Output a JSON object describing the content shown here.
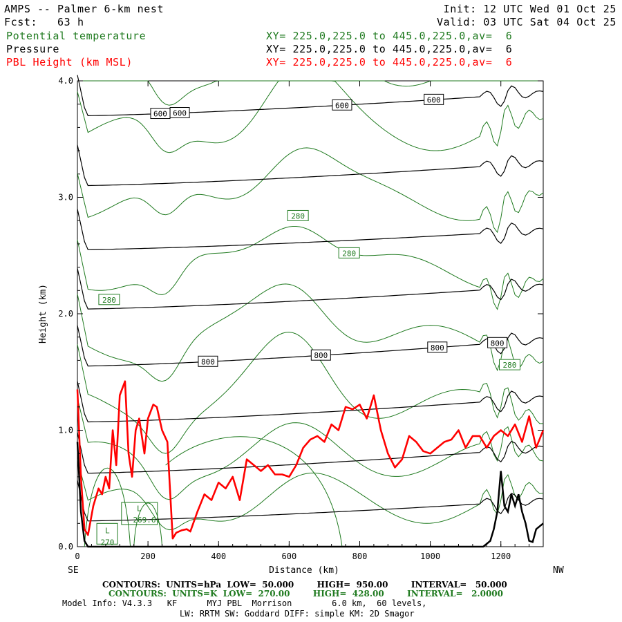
{
  "header": {
    "title": "AMPS -- Palmer 6-km nest",
    "fcst": "Fcst:   63 h",
    "init": "Init: 12 UTC Wed 01 Oct 25",
    "valid": "Valid: 03 UTC Sat 04 Oct 25",
    "fields": [
      {
        "name": "Potential temperature",
        "xy": "XY= 225.0,225.0 to 445.0,225.0,av=  6",
        "color": "#1f7a1f"
      },
      {
        "name": "Pressure",
        "xy": "XY= 225.0,225.0 to 445.0,225.0,av=  6",
        "color": "#000000"
      },
      {
        "name": "PBL Height (km MSL)",
        "xy": "XY= 225.0,225.0 to 445.0,225.0,av=  6",
        "color": "#ff0000"
      }
    ]
  },
  "chart_data": {
    "type": "line",
    "xlabel": "Distance (km)",
    "ylabel": "Height (km)",
    "xlim": [
      0,
      1320
    ],
    "ylim": [
      0,
      4.0
    ],
    "x_ticks": [
      0,
      200,
      400,
      600,
      800,
      1000,
      1200
    ],
    "y_ticks": [
      "0.0",
      "1.0",
      "2.0",
      "3.0",
      "4.0"
    ],
    "x_end_labels": {
      "left": "SE",
      "right": "NW"
    },
    "pressure_contours": {
      "units": "hPa",
      "low": 50,
      "high": 950,
      "interval": 50,
      "color": "#000000",
      "lines": [
        {
          "y0": 0.22,
          "y1": 0.4,
          "label": "",
          "label_x": []
        },
        {
          "y0": 0.63,
          "y1": 0.85,
          "label": "",
          "label_x": []
        },
        {
          "y0": 1.07,
          "y1": 1.28,
          "label": "",
          "label_x": []
        },
        {
          "y0": 1.55,
          "y1": 1.78,
          "label": "800",
          "label_x": [
            370,
            690,
            1020,
            1190
          ]
        },
        {
          "y0": 2.04,
          "y1": 2.24,
          "label": "",
          "label_x": []
        },
        {
          "y0": 2.55,
          "y1": 2.72,
          "label": "",
          "label_x": []
        },
        {
          "y0": 3.1,
          "y1": 3.3,
          "label": "",
          "label_x": []
        },
        {
          "y0": 3.7,
          "y1": 3.9,
          "label": "600",
          "label_x": [
            235,
            290,
            750,
            1010
          ]
        }
      ]
    },
    "theta_contours": {
      "units": "K",
      "low": 270,
      "high": 428,
      "interval": 2.0,
      "color": "#1f7a1f",
      "labels": [
        {
          "text": "280",
          "x": 90,
          "y": 2.12
        },
        {
          "text": "280",
          "x": 625,
          "y": 2.84
        },
        {
          "text": "280",
          "x": 770,
          "y": 2.52
        },
        {
          "text": "280",
          "x": 1225,
          "y": 1.56
        },
        {
          "text": "L",
          "x": 175,
          "y": 0.33
        },
        {
          "text": "269.6",
          "x": 190,
          "y": 0.23
        },
        {
          "text": "L",
          "x": 85,
          "y": 0.14
        },
        {
          "text": "270",
          "x": 85,
          "y": 0.04
        }
      ]
    },
    "pbl_height": {
      "name": "PBL Height (km MSL)",
      "color": "#ff0000",
      "x": [
        0,
        10,
        20,
        30,
        45,
        60,
        70,
        80,
        90,
        100,
        110,
        120,
        135,
        145,
        155,
        165,
        175,
        190,
        200,
        215,
        225,
        240,
        255,
        270,
        280,
        295,
        310,
        320,
        340,
        360,
        380,
        400,
        420,
        440,
        460,
        480,
        500,
        520,
        540,
        560,
        580,
        600,
        620,
        640,
        660,
        680,
        700,
        720,
        740,
        760,
        780,
        800,
        820,
        840,
        860,
        880,
        900,
        920,
        940,
        960,
        980,
        1000,
        1020,
        1040,
        1060,
        1080,
        1100,
        1120,
        1140,
        1160,
        1180,
        1200,
        1220,
        1240,
        1260,
        1280,
        1300,
        1320
      ],
      "y": [
        1.35,
        0.6,
        0.15,
        0.1,
        0.35,
        0.5,
        0.45,
        0.6,
        0.5,
        1.0,
        0.7,
        1.3,
        1.42,
        0.8,
        0.6,
        1.0,
        1.1,
        0.8,
        1.1,
        1.22,
        1.2,
        1.0,
        0.9,
        0.07,
        0.12,
        0.14,
        0.15,
        0.13,
        0.3,
        0.45,
        0.4,
        0.55,
        0.5,
        0.6,
        0.4,
        0.75,
        0.7,
        0.65,
        0.7,
        0.62,
        0.62,
        0.6,
        0.7,
        0.85,
        0.92,
        0.95,
        0.9,
        1.05,
        1.0,
        1.2,
        1.18,
        1.22,
        1.1,
        1.3,
        1.0,
        0.8,
        0.68,
        0.75,
        0.95,
        0.9,
        0.82,
        0.8,
        0.85,
        0.9,
        0.92,
        1.0,
        0.85,
        0.95,
        0.95,
        0.85,
        0.95,
        1.0,
        0.95,
        1.05,
        0.9,
        1.12,
        0.85,
        1.0
      ]
    },
    "terrain": {
      "name": "Terrain",
      "color": "#000000",
      "x": [
        0,
        10,
        20,
        30,
        1150,
        1170,
        1180,
        1190,
        1200,
        1210,
        1220,
        1230,
        1240,
        1250,
        1260,
        1270,
        1280,
        1290,
        1300,
        1320
      ],
      "y": [
        0.9,
        0.3,
        0.05,
        0.0,
        0.0,
        0.05,
        0.15,
        0.3,
        0.65,
        0.35,
        0.3,
        0.45,
        0.35,
        0.45,
        0.3,
        0.2,
        0.05,
        0.04,
        0.15,
        0.2
      ]
    }
  },
  "footer": {
    "contours_black": "CONTOURS:  UNITS=hPa  LOW=  50.000        HIGH=  950.00        INTERVAL=   50.000",
    "contours_green": "CONTOURS:  UNITS=K  LOW=  270.00        HIGH=  428.00        INTERVAL=   2.0000",
    "model_info": "Model Info: V4.3.3   KF      MYJ PBL  Morrison        6.0 km,  60 levels,",
    "model_info2": "LW: RRTM SW: Goddard DIFF: simple KM: 2D Smagor"
  }
}
